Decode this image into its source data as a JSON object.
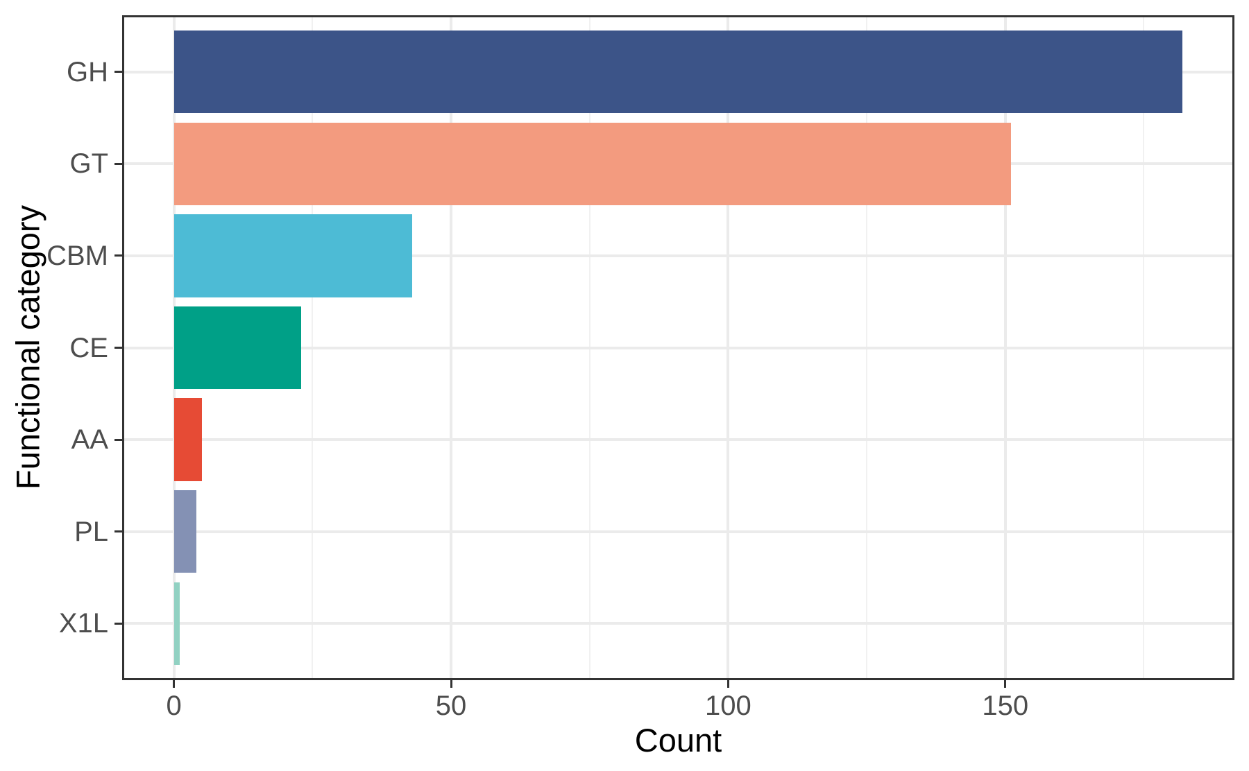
{
  "chart_data": {
    "type": "bar",
    "orientation": "horizontal",
    "title": "",
    "xlabel": "Count",
    "ylabel": "Functional category",
    "categories": [
      "GH",
      "GT",
      "CBM",
      "CE",
      "AA",
      "PL",
      "X1L"
    ],
    "values": [
      182,
      151,
      43,
      23,
      5,
      4,
      1
    ],
    "bar_colors": [
      "#3C5488",
      "#F39B7F",
      "#4DBBD5",
      "#00A087",
      "#E64B35",
      "#8491B4",
      "#91D1C2"
    ],
    "xlim": [
      0,
      182
    ],
    "x_major_ticks": [
      0,
      50,
      100,
      150
    ],
    "x_major_tick_labels": [
      "0",
      "50",
      "100",
      "150"
    ],
    "x_minor_ticks": [
      25,
      75,
      125,
      175
    ],
    "grid": "vertical major+minor, horizontal major at category centers",
    "legend": "none",
    "colors": {
      "grid_major": "#EBEBEB",
      "grid_minor": "#F1F1F1",
      "panel_border": "#333333",
      "tick_mark": "#333333",
      "axis_text": "#4D4D4D",
      "axis_title": "#000000",
      "background": "#FFFFFF"
    }
  }
}
